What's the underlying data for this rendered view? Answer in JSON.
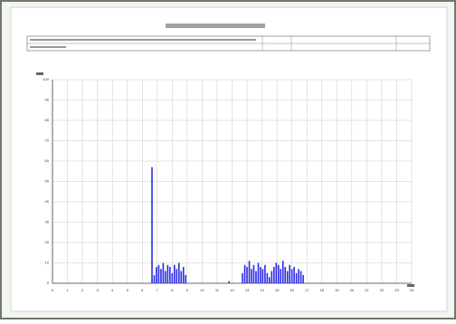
{
  "chart_data": {
    "type": "bar",
    "color": "#2b2be6",
    "grid": true,
    "x": [
      6.65,
      6.8,
      6.95,
      7.1,
      7.25,
      7.4,
      7.55,
      7.7,
      7.85,
      8.0,
      8.15,
      8.3,
      8.45,
      8.6,
      8.75,
      8.9,
      11.8,
      12.7,
      12.85,
      13.0,
      13.15,
      13.3,
      13.45,
      13.6,
      13.75,
      13.9,
      14.05,
      14.2,
      14.35,
      14.5,
      14.65,
      14.8,
      14.95,
      15.1,
      15.25,
      15.4,
      15.55,
      15.7,
      15.85,
      16.0,
      16.15,
      16.3,
      16.45,
      16.6,
      16.75
    ],
    "values": [
      57,
      4,
      8,
      9,
      7,
      10,
      6,
      9,
      8,
      5,
      9,
      7,
      10,
      6,
      8,
      4,
      1,
      5,
      9,
      8,
      11,
      7,
      9,
      6,
      10,
      8,
      7,
      9,
      5,
      3,
      6,
      8,
      10,
      9,
      7,
      11,
      8,
      6,
      9,
      7,
      8,
      5,
      7,
      6,
      4
    ],
    "xlim": [
      0,
      24
    ],
    "xticks": [
      0,
      1,
      2,
      3,
      4,
      5,
      6,
      7,
      8,
      9,
      10,
      11,
      12,
      13,
      14,
      15,
      16,
      17,
      18,
      19,
      20,
      21,
      22,
      23,
      24
    ],
    "ylim": [
      0,
      100
    ],
    "yticks": [
      0,
      10,
      20,
      30,
      40,
      50,
      60,
      70,
      80,
      90,
      100
    ]
  }
}
